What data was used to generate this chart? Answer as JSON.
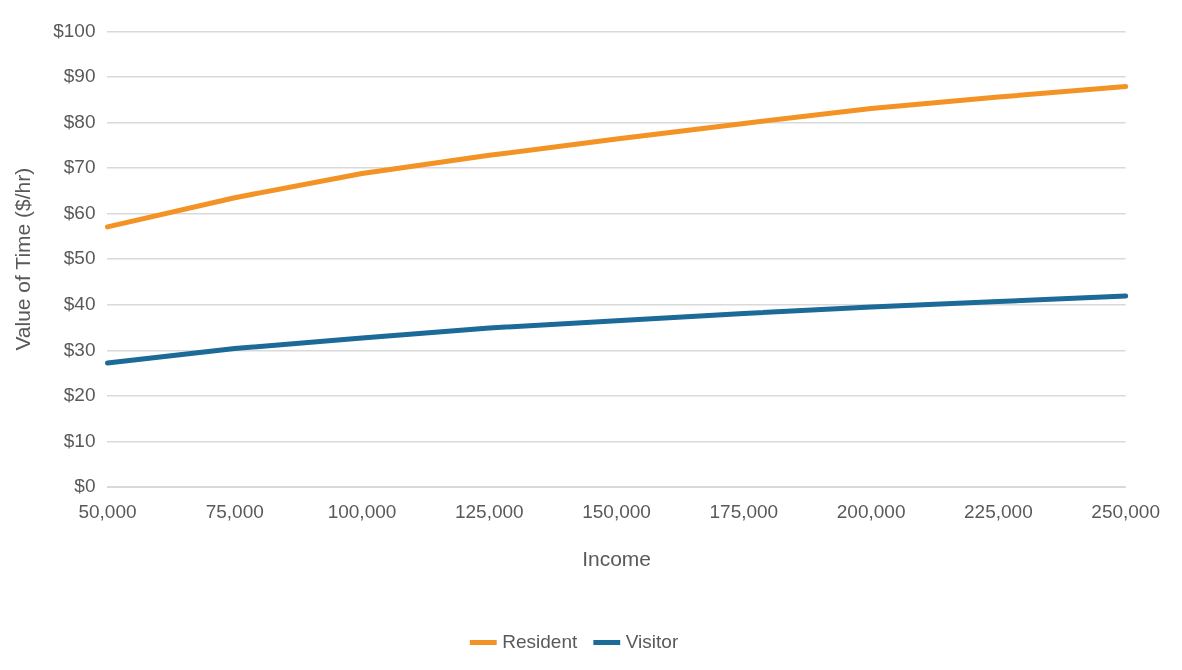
{
  "chart_data": {
    "type": "line",
    "xlabel": "Income",
    "ylabel": "Value of Time ($/hr)",
    "categories": [
      "50,000",
      "75,000",
      "100,000",
      "125,000",
      "150,000",
      "175,000",
      "200,000",
      "225,000",
      "250,000"
    ],
    "series": [
      {
        "name": "Resident",
        "color": "#f39325",
        "values": [
          57.1,
          63.5,
          68.8,
          72.8,
          76.4,
          79.8,
          83.1,
          85.6,
          87.9
        ]
      },
      {
        "name": "Visitor",
        "color": "#1b6a97",
        "values": [
          27.2,
          30.4,
          32.7,
          34.9,
          36.5,
          38.1,
          39.5,
          40.7,
          41.9
        ]
      }
    ],
    "ylim": [
      0,
      100
    ],
    "yticks": [
      {
        "value": 0,
        "label": "$0"
      },
      {
        "value": 10,
        "label": "$10"
      },
      {
        "value": 20,
        "label": "$20"
      },
      {
        "value": 30,
        "label": "$30"
      },
      {
        "value": 40,
        "label": "$40"
      },
      {
        "value": 50,
        "label": "$50"
      },
      {
        "value": 60,
        "label": "$60"
      },
      {
        "value": 70,
        "label": "$70"
      },
      {
        "value": 80,
        "label": "$80"
      },
      {
        "value": 90,
        "label": "$90"
      },
      {
        "value": 100,
        "label": "$100"
      }
    ],
    "grid": "y",
    "legend": "bottom",
    "marker": "none",
    "line_style": "solid"
  }
}
